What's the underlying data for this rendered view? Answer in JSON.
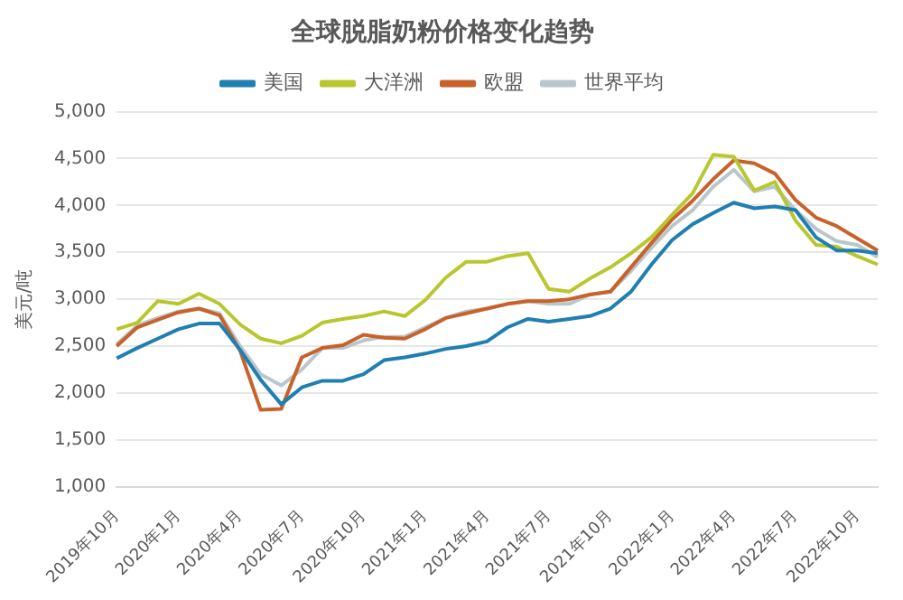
{
  "chart_data": {
    "type": "line",
    "title": "全球脱脂奶粉价格变化趋势",
    "ylabel": "美元/吨",
    "categories": [
      "2019年10月",
      null,
      null,
      "2020年1月",
      null,
      null,
      "2020年4月",
      null,
      null,
      "2020年7月",
      null,
      null,
      "2020年10月",
      null,
      null,
      "2021年1月",
      null,
      null,
      "2021年4月",
      null,
      null,
      "2021年7月",
      null,
      null,
      "2021年10月",
      null,
      null,
      "2022年1月",
      null,
      null,
      "2022年4月",
      null,
      null,
      "2022年7月",
      null,
      null,
      "2022年10月",
      null
    ],
    "series": [
      {
        "name": "美国",
        "color": "#1f7fb0",
        "values": [
          2370,
          2480,
          2580,
          2680,
          2740,
          2740,
          2460,
          2140,
          1880,
          2060,
          2130,
          2130,
          2200,
          2350,
          2380,
          2420,
          2470,
          2500,
          2550,
          2700,
          2790,
          2760,
          2790,
          2820,
          2900,
          3080,
          3370,
          3630,
          3800,
          3920,
          4030,
          3970,
          3990,
          3950,
          3660,
          3520,
          3520,
          3490
        ]
      },
      {
        "name": "大洋洲",
        "color": "#b8c72e",
        "values": [
          2680,
          2750,
          2980,
          2950,
          3060,
          2950,
          2730,
          2580,
          2530,
          2610,
          2750,
          2790,
          2820,
          2870,
          2820,
          2990,
          3230,
          3400,
          3400,
          3460,
          3490,
          3110,
          3080,
          3220,
          3340,
          3490,
          3660,
          3900,
          4130,
          4540,
          4520,
          4160,
          4250,
          3840,
          3580,
          3560,
          3460,
          3370
        ]
      },
      {
        "name": "欧盟",
        "color": "#c8622a",
        "values": [
          2500,
          2700,
          2780,
          2860,
          2900,
          2830,
          2450,
          1820,
          1830,
          2380,
          2480,
          2510,
          2620,
          2590,
          2580,
          2680,
          2800,
          2850,
          2900,
          2950,
          2980,
          2980,
          3000,
          3050,
          3080,
          3340,
          3600,
          3850,
          4050,
          4280,
          4480,
          4450,
          4340,
          4060,
          3870,
          3780,
          3650,
          3520
        ]
      },
      {
        "name": "世界平均",
        "color": "#b9c7cc",
        "values": [
          2520,
          2720,
          2800,
          2870,
          2900,
          2850,
          2500,
          2200,
          2080,
          2250,
          2480,
          2480,
          2560,
          2600,
          2600,
          2700,
          2800,
          2870,
          2900,
          2950,
          2980,
          2950,
          2950,
          3050,
          3080,
          3300,
          3550,
          3780,
          3950,
          4200,
          4380,
          4150,
          4200,
          3950,
          3750,
          3620,
          3580,
          3450
        ]
      }
    ],
    "ylim": [
      1000,
      5000
    ],
    "yticks": [
      {
        "value": 1000,
        "label": "1,000"
      },
      {
        "value": 1500,
        "label": "1,500"
      },
      {
        "value": 2000,
        "label": "2,000"
      },
      {
        "value": 2500,
        "label": "2,500"
      },
      {
        "value": 3000,
        "label": "3,000"
      },
      {
        "value": 3500,
        "label": "3,500"
      },
      {
        "value": 4000,
        "label": "4,000"
      },
      {
        "value": 4500,
        "label": "4,500"
      },
      {
        "value": 5000,
        "label": "5,000"
      }
    ],
    "grid": "y",
    "legend": "top",
    "marker": "none",
    "line_style": "solid"
  }
}
